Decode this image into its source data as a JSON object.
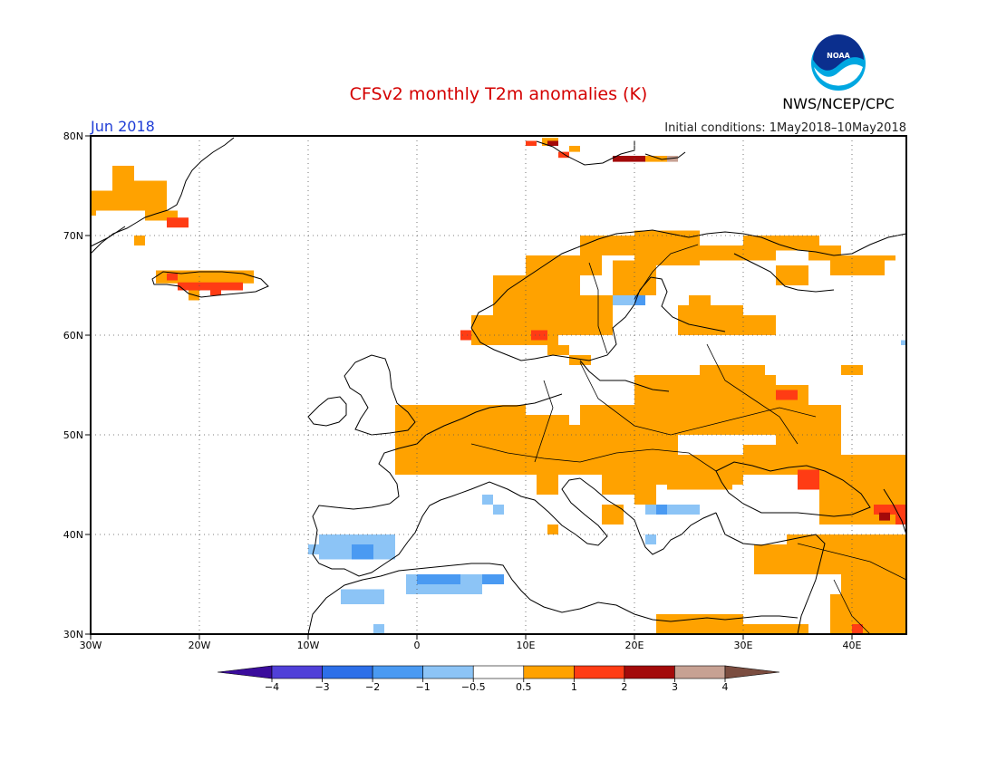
{
  "header": {
    "title": "CFSv2 monthly T2m anomalies (K)",
    "month": "Jun 2018",
    "initial_conditions": "Initial conditions: 1May2018–10May2018",
    "agency": "NWS/NCEP/CPC",
    "logo_text": "NOAA"
  },
  "colors": {
    "title": "#d40000",
    "month": "#1f3dd6",
    "levels": [
      "#3a0c9c",
      "#5040d8",
      "#2d6fe8",
      "#4a9af2",
      "#8cc4f6",
      "#ffffff",
      "#ffa200",
      "#ff3c14",
      "#a30a0a",
      "#c7a193",
      "#7b4d40"
    ]
  },
  "map": {
    "lon_labels": [
      "30W",
      "20W",
      "10W",
      "0",
      "10E",
      "20E",
      "30E",
      "40E"
    ],
    "lat_labels": [
      "80N",
      "70N",
      "60N",
      "50N",
      "40N",
      "30N"
    ]
  },
  "colorbar": {
    "labels": [
      "−4",
      "−3",
      "−2",
      "−1",
      "−0.5",
      "0.5",
      "1",
      "2",
      "3",
      "4"
    ]
  }
}
